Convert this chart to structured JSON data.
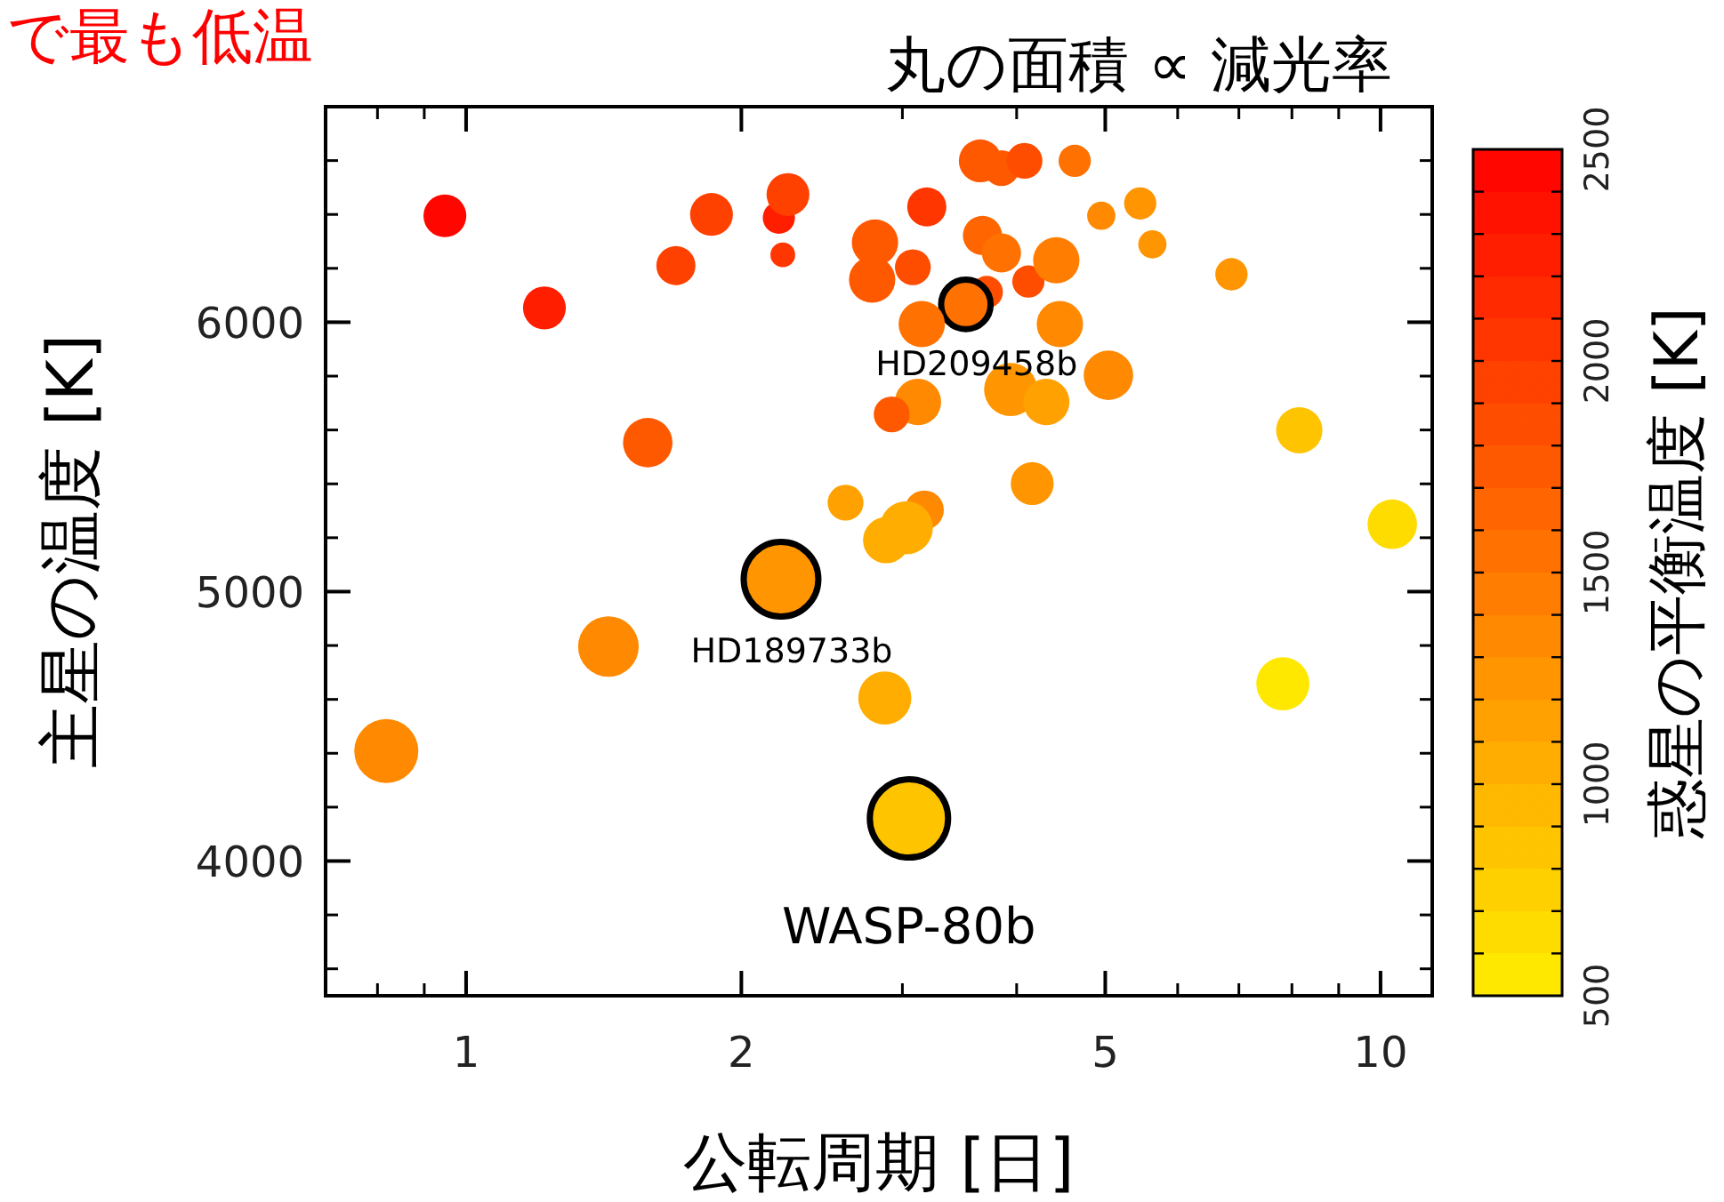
{
  "chart_data": {
    "type": "bubble",
    "title": "丸の面積 ∝ 減光率",
    "xlabel": "公転周期 [日]",
    "ylabel": "主星の温度 [K]",
    "clabel": "惑星の平衡温度 [K]",
    "log": "x",
    "xlim": [
      0.702,
      11.39
    ],
    "ylim": [
      3500,
      6800
    ],
    "xticks": [
      1,
      2,
      5,
      10
    ],
    "yticks": [
      4000,
      5000,
      6000
    ],
    "clim": [
      500,
      2500
    ],
    "cticks": [
      500,
      1000,
      1500,
      2000,
      2500
    ],
    "x": [
      0.948,
      1.218,
      1.696,
      1.855,
      1.58,
      2.198,
      2.249,
      2.22,
      2.8,
      2.78,
      3.65,
      3.85,
      4.08,
      4.63,
      3.19,
      4.95,
      5.46,
      5.63,
      6.87,
      3.67,
      3.85,
      3.08,
      4.12,
      4.42,
      3.71,
      3.52,
      3.15,
      4.46,
      5.04,
      3.94,
      4.31,
      3.12,
      2.92,
      8.15,
      4.16,
      10.3,
      2.6,
      3.17,
      3.03,
      2.88,
      2.21,
      1.431,
      0.818,
      2.87,
      7.82,
      3.05
    ],
    "values": [
      6395,
      6053,
      6210,
      6400,
      5553,
      6388,
      6474,
      6250,
      6296,
      6158,
      6599,
      6572,
      6599,
      6599,
      6428,
      6395,
      6441,
      6289,
      6178,
      6322,
      6257,
      6204,
      6151,
      6230,
      6112,
      6066,
      5993,
      5993,
      5803,
      5750,
      5704,
      5704,
      5658,
      5599,
      5401,
      5250,
      5330,
      5303,
      5237,
      5191,
      5046,
      4796,
      4408,
      4605,
      4658,
      4158
    ],
    "sizes": [
      0.3,
      0.3,
      0.25,
      0.3,
      0.4,
      0.17,
      0.3,
      0.1,
      0.35,
      0.35,
      0.3,
      0.21,
      0.21,
      0.17,
      0.25,
      0.13,
      0.17,
      0.13,
      0.17,
      0.25,
      0.25,
      0.21,
      0.17,
      0.35,
      0.17,
      0.4,
      0.35,
      0.35,
      0.4,
      0.46,
      0.35,
      0.35,
      0.21,
      0.35,
      0.3,
      0.4,
      0.21,
      0.25,
      0.46,
      0.35,
      0.91,
      0.6,
      0.67,
      0.46,
      0.46,
      1
    ],
    "cvalues": [
      2400,
      2200,
      1950,
      1950,
      1700,
      2200,
      1900,
      2000,
      1700,
      1700,
      1700,
      1700,
      1800,
      1500,
      2000,
      1300,
      1200,
      1200,
      1200,
      1600,
      1500,
      1800,
      1800,
      1400,
      1800,
      1500,
      1500,
      1300,
      1300,
      1200,
      1100,
      1300,
      1700,
      800,
      1200,
      600,
      1100,
      1300,
      1050,
      1050,
      1200,
      1300,
      1350,
      1000,
      500,
      800
    ],
    "annotations": [
      "で最も低温",
      {
        "text": "HD209458b",
        "x": 3.52,
        "y": 6066
      },
      {
        "text": "HD189733b",
        "x": 2.21,
        "y": 5046
      },
      {
        "text": "WASP-80b",
        "x": 3.05,
        "y": 4158
      }
    ]
  }
}
